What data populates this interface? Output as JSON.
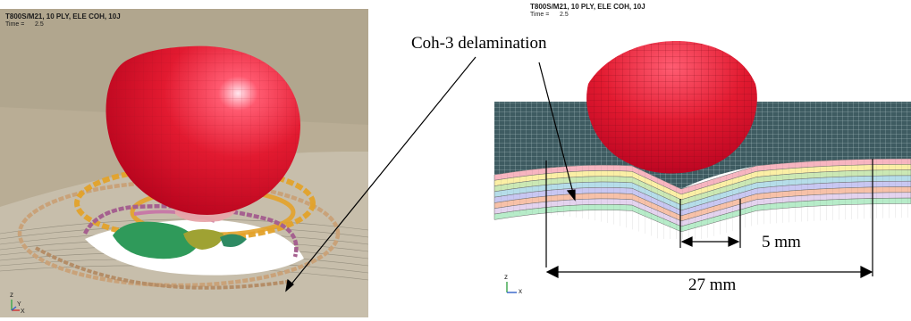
{
  "left_panel": {
    "title": "T800S/M21, 10 PLY, ELE COH, 10J",
    "time_label": "Time =",
    "time_value": "2.5",
    "axis_labels": {
      "z": "z",
      "y": "Y",
      "x": "X"
    }
  },
  "right_panel": {
    "title": "T800S/M21, 10 PLY, ELE COH, 10J",
    "time_label": "Time =",
    "time_value": "2.5",
    "axis_labels": {
      "z": "z",
      "x": "x"
    }
  },
  "annotations": {
    "delamination_label": "Coh-3 delamination",
    "small_dimension": "5 mm",
    "large_dimension": "27 mm"
  },
  "colors": {
    "impactor": "#e0182b",
    "laminate_mesh": "#3f5d63",
    "left_background": "#b8ab93",
    "coh_ring_orange": "#e2a32a",
    "coh_ring_purple": "#a5608f",
    "coh_ring_brown": "#c9a279",
    "coh_green": "#2f9a5a"
  },
  "plies": [
    "#f7b5c0",
    "#fbefa5",
    "#cbe8b4",
    "#b5dde9",
    "#c8c7f2",
    "#f7c1a8",
    "#e4d3ee",
    "#b7ecc9"
  ]
}
